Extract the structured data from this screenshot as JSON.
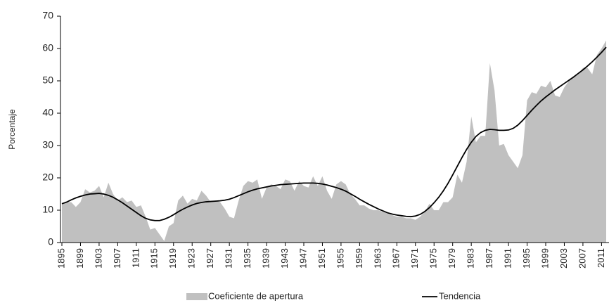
{
  "chart_data": {
    "type": "area_line",
    "y_label": "Porcentaje",
    "x": [
      1895,
      1896,
      1897,
      1898,
      1899,
      1900,
      1901,
      1902,
      1903,
      1904,
      1905,
      1906,
      1907,
      1908,
      1909,
      1910,
      1911,
      1912,
      1913,
      1914,
      1915,
      1916,
      1917,
      1918,
      1919,
      1920,
      1921,
      1922,
      1923,
      1924,
      1925,
      1926,
      1927,
      1928,
      1929,
      1930,
      1931,
      1932,
      1933,
      1934,
      1935,
      1936,
      1937,
      1938,
      1939,
      1940,
      1941,
      1942,
      1943,
      1944,
      1945,
      1946,
      1947,
      1948,
      1949,
      1950,
      1951,
      1952,
      1953,
      1954,
      1955,
      1956,
      1957,
      1958,
      1959,
      1960,
      1961,
      1962,
      1963,
      1964,
      1965,
      1966,
      1967,
      1968,
      1969,
      1970,
      1971,
      1972,
      1973,
      1974,
      1975,
      1976,
      1977,
      1978,
      1979,
      1980,
      1981,
      1982,
      1983,
      1984,
      1985,
      1986,
      1987,
      1988,
      1989,
      1990,
      1991,
      1992,
      1993,
      1994,
      1995,
      1996,
      1997,
      1998,
      1999,
      2000,
      2001,
      2002,
      2003,
      2004,
      2005,
      2006,
      2007,
      2008,
      2009,
      2010,
      2011,
      2012
    ],
    "series": [
      {
        "name": "Coeficiente de apertura",
        "kind": "area",
        "color": "#c0c0c0",
        "values": [
          12,
          12.5,
          12.5,
          11,
          12.5,
          16.5,
          15.5,
          16,
          17.5,
          14,
          18.5,
          15,
          13,
          14,
          12.5,
          13,
          11,
          11.5,
          8,
          4,
          4.5,
          2.5,
          0.5,
          5,
          6,
          13,
          14.5,
          12,
          13.5,
          13,
          16,
          14.5,
          12.5,
          13,
          12.5,
          10.5,
          8,
          7.5,
          13,
          17.5,
          19,
          18.5,
          19.5,
          13.5,
          17,
          18,
          17.5,
          16.5,
          19.5,
          19,
          16,
          19,
          17.5,
          17,
          20.5,
          17.5,
          20.5,
          16,
          13.5,
          18,
          19,
          18,
          15,
          13.5,
          11.5,
          11.5,
          10.5,
          10,
          10,
          9.5,
          9,
          8.5,
          8,
          8,
          7.5,
          7.5,
          7,
          8,
          9.5,
          12,
          10,
          10,
          12.5,
          12.5,
          14,
          21,
          18.5,
          25,
          39,
          31,
          33,
          33,
          55.5,
          47,
          30,
          30.5,
          27,
          25,
          23,
          27,
          44,
          46.5,
          46,
          48.5,
          48,
          50,
          45.5,
          45,
          48,
          50,
          51,
          52,
          54,
          54,
          52,
          58,
          60,
          62.5
        ]
      },
      {
        "name": "Tendencia",
        "kind": "line",
        "color": "#000000",
        "values": [
          12,
          12.5,
          13.2,
          13.8,
          14.3,
          14.7,
          15,
          15.1,
          15.2,
          15,
          14.6,
          14,
          13.2,
          12.3,
          11.3,
          10.3,
          9.3,
          8.3,
          7.5,
          7,
          6.8,
          6.8,
          7.2,
          7.8,
          8.6,
          9.5,
          10.3,
          11,
          11.6,
          12.1,
          12.4,
          12.6,
          12.7,
          12.8,
          12.9,
          13.1,
          13.4,
          13.9,
          14.5,
          15.1,
          15.7,
          16.2,
          16.6,
          16.9,
          17.2,
          17.5,
          17.7,
          17.9,
          18,
          18.1,
          18.2,
          18.3,
          18.4,
          18.4,
          18.4,
          18.3,
          18.1,
          17.8,
          17.4,
          17,
          16.5,
          15.9,
          15.1,
          14.3,
          13.4,
          12.6,
          11.8,
          11.1,
          10.4,
          9.8,
          9.2,
          8.8,
          8.5,
          8.3,
          8.1,
          8,
          8.2,
          8.7,
          9.6,
          10.8,
          12.3,
          14,
          16,
          18.3,
          20.9,
          23.6,
          26.3,
          28.8,
          31,
          32.8,
          34,
          34.7,
          35,
          34.9,
          34.7,
          34.7,
          34.8,
          35.3,
          36.3,
          37.7,
          39.3,
          40.9,
          42.4,
          43.8,
          45,
          46.1,
          47.2,
          48.2,
          49.2,
          50.2,
          51.2,
          52.3,
          53.4,
          54.6,
          55.9,
          57.3,
          58.8,
          60.4
        ]
      }
    ],
    "xlim": [
      1895,
      2012
    ],
    "xticks": [
      1895,
      1899,
      1903,
      1907,
      1911,
      1915,
      1919,
      1923,
      1927,
      1931,
      1935,
      1939,
      1943,
      1947,
      1951,
      1955,
      1959,
      1963,
      1967,
      1971,
      1975,
      1979,
      1983,
      1987,
      1991,
      1995,
      1999,
      2003,
      2007,
      2011
    ],
    "ylim": [
      0,
      70
    ],
    "yticks": [
      0,
      10,
      20,
      30,
      40,
      50,
      60,
      70
    ],
    "legend": "bottom"
  }
}
